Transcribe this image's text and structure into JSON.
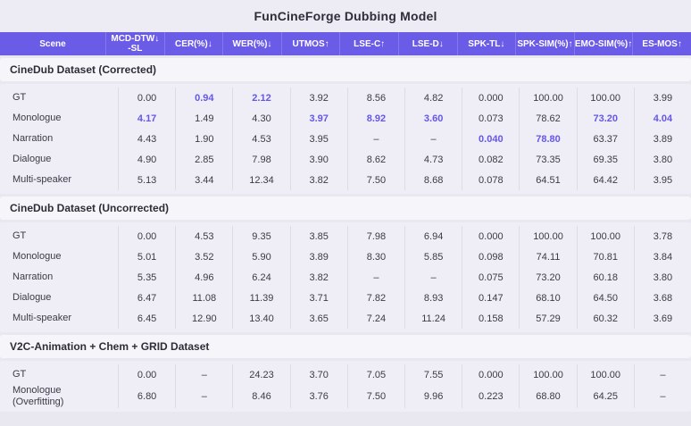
{
  "colors": {
    "header_bg": "#6b5ce8",
    "header_divider": "#8577ee",
    "highlight": "#6457e8",
    "page_bg": "#e9e8f1",
    "band_bg": "#f6f5fa",
    "panel_bg": "#efeef6"
  },
  "chart_data": {
    "type": "table",
    "title": "FunCineForge Dubbing Model",
    "columns": [
      {
        "key": "scene",
        "label": "Scene"
      },
      {
        "key": "mcd-dtw-sl",
        "label": "MCD-DTW↓\n-SL"
      },
      {
        "key": "cer",
        "label": "CER(%)↓"
      },
      {
        "key": "wer",
        "label": "WER(%)↓"
      },
      {
        "key": "utmos",
        "label": "UTMOS↑"
      },
      {
        "key": "lse-c",
        "label": "LSE-C↑"
      },
      {
        "key": "lse-d",
        "label": "LSE-D↓"
      },
      {
        "key": "spk-tl",
        "label": "SPK-TL↓"
      },
      {
        "key": "spk-sim",
        "label": "SPK-SIM(%)↑"
      },
      {
        "key": "emo-sim",
        "label": "EMO-SIM(%)↑"
      },
      {
        "key": "es-mos",
        "label": "ES-MOS↑"
      }
    ],
    "sections": [
      {
        "title": "CineDub Dataset (Corrected)",
        "rows": [
          {
            "scene": "GT",
            "values": [
              "0.00",
              "0.94",
              "2.12",
              "3.92",
              "8.56",
              "4.82",
              "0.000",
              "100.00",
              "100.00",
              "3.99"
            ],
            "highlights": [
              1,
              2
            ]
          },
          {
            "scene": "Monologue",
            "values": [
              "4.17",
              "1.49",
              "4.30",
              "3.97",
              "8.92",
              "3.60",
              "0.073",
              "78.62",
              "73.20",
              "4.04"
            ],
            "highlights": [
              0,
              3,
              4,
              5,
              8,
              9
            ]
          },
          {
            "scene": "Narration",
            "values": [
              "4.43",
              "1.90",
              "4.53",
              "3.95",
              "–",
              "–",
              "0.040",
              "78.80",
              "63.37",
              "3.89"
            ],
            "highlights": [
              6,
              7
            ]
          },
          {
            "scene": "Dialogue",
            "values": [
              "4.90",
              "2.85",
              "7.98",
              "3.90",
              "8.62",
              "4.73",
              "0.082",
              "73.35",
              "69.35",
              "3.80"
            ],
            "highlights": []
          },
          {
            "scene": "Multi-speaker",
            "values": [
              "5.13",
              "3.44",
              "12.34",
              "3.82",
              "7.50",
              "8.68",
              "0.078",
              "64.51",
              "64.42",
              "3.95"
            ],
            "highlights": []
          }
        ]
      },
      {
        "title": "CineDub Dataset (Uncorrected)",
        "rows": [
          {
            "scene": "GT",
            "values": [
              "0.00",
              "4.53",
              "9.35",
              "3.85",
              "7.98",
              "6.94",
              "0.000",
              "100.00",
              "100.00",
              "3.78"
            ],
            "highlights": []
          },
          {
            "scene": "Monologue",
            "values": [
              "5.01",
              "3.52",
              "5.90",
              "3.89",
              "8.30",
              "5.85",
              "0.098",
              "74.11",
              "70.81",
              "3.84"
            ],
            "highlights": []
          },
          {
            "scene": "Narration",
            "values": [
              "5.35",
              "4.96",
              "6.24",
              "3.82",
              "–",
              "–",
              "0.075",
              "73.20",
              "60.18",
              "3.80"
            ],
            "highlights": []
          },
          {
            "scene": "Dialogue",
            "values": [
              "6.47",
              "11.08",
              "11.39",
              "3.71",
              "7.82",
              "8.93",
              "0.147",
              "68.10",
              "64.50",
              "3.68"
            ],
            "highlights": []
          },
          {
            "scene": "Multi-speaker",
            "values": [
              "6.45",
              "12.90",
              "13.40",
              "3.65",
              "7.24",
              "11.24",
              "0.158",
              "57.29",
              "60.32",
              "3.69"
            ],
            "highlights": []
          }
        ]
      },
      {
        "title": "V2C-Animation + Chem + GRID Dataset",
        "rows": [
          {
            "scene": "GT",
            "values": [
              "0.00",
              "–",
              "24.23",
              "3.70",
              "7.05",
              "7.55",
              "0.000",
              "100.00",
              "100.00",
              "–"
            ],
            "highlights": []
          },
          {
            "scene": "Monologue\n(Overfitting)",
            "values": [
              "6.80",
              "–",
              "8.46",
              "3.76",
              "7.50",
              "9.96",
              "0.223",
              "68.80",
              "64.25",
              "–"
            ],
            "highlights": []
          }
        ]
      }
    ]
  }
}
